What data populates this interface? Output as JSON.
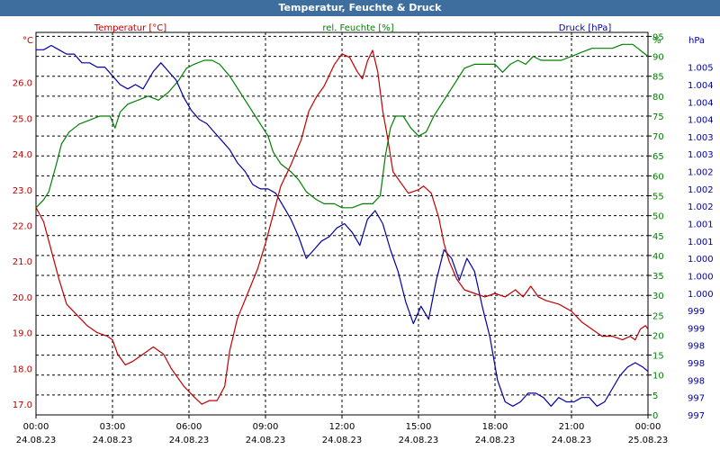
{
  "window": {
    "title": "Temperatur, Feuchte & Druck"
  },
  "colors": {
    "temperature": "#c00000",
    "humidity": "#008000",
    "pressure": "#0000a8",
    "titlebar": "#3d6e9e",
    "grid": "#000000"
  },
  "chart_data": {
    "type": "line",
    "title": "Temperatur, Feuchte & Druck",
    "series_labels": {
      "temperature": "Temperatur [°C]",
      "humidity": "rel. Feuchte [%]",
      "pressure": "Druck [hPa]"
    },
    "axis_units": {
      "left": "°C",
      "right1": "%",
      "right2": "hPa"
    },
    "y_left": {
      "min": 16.7,
      "max": 27.4,
      "ticks": [
        "17.0",
        "18.0",
        "19.0",
        "20.0",
        "21.0",
        "22.0",
        "23.0",
        "24.0",
        "25.0",
        "26.0"
      ]
    },
    "y_right1": {
      "min": 0,
      "max": 96,
      "ticks": [
        "0",
        "5",
        "10",
        "15",
        "20",
        "25",
        "30",
        "35",
        "40",
        "45",
        "50",
        "55",
        "60",
        "65",
        "70",
        "75",
        "80",
        "85",
        "90",
        "95"
      ]
    },
    "y_right2": {
      "min": 996.8,
      "max": 1005.6,
      "ticks": [
        {
          "value": 996.8,
          "label": "997"
        },
        {
          "value": 997.2,
          "label": "997"
        },
        {
          "value": 997.6,
          "label": "998"
        },
        {
          "value": 998.0,
          "label": "998"
        },
        {
          "value": 998.4,
          "label": "998"
        },
        {
          "value": 998.8,
          "label": "999"
        },
        {
          "value": 999.2,
          "label": "999"
        },
        {
          "value": 999.6,
          "label": "1.000"
        },
        {
          "value": 1000.0,
          "label": "1.000"
        },
        {
          "value": 1000.4,
          "label": "1.000"
        },
        {
          "value": 1000.8,
          "label": "1.001"
        },
        {
          "value": 1001.2,
          "label": "1.001"
        },
        {
          "value": 1001.6,
          "label": "1.002"
        },
        {
          "value": 1002.0,
          "label": "1.002"
        },
        {
          "value": 1002.4,
          "label": "1.002"
        },
        {
          "value": 1002.8,
          "label": "1.003"
        },
        {
          "value": 1003.2,
          "label": "1.003"
        },
        {
          "value": 1003.6,
          "label": "1.004"
        },
        {
          "value": 1004.0,
          "label": "1.004"
        },
        {
          "value": 1004.4,
          "label": "1.004"
        },
        {
          "value": 1004.8,
          "label": "1.005"
        }
      ]
    },
    "x_range": [
      0,
      24
    ],
    "x_ticks": [
      {
        "hour": 0,
        "time": "00:00",
        "date": "24.08.23"
      },
      {
        "hour": 3,
        "time": "03:00",
        "date": "24.08.23"
      },
      {
        "hour": 6,
        "time": "06:00",
        "date": "24.08.23"
      },
      {
        "hour": 9,
        "time": "09:00",
        "date": "24.08.23"
      },
      {
        "hour": 12,
        "time": "12:00",
        "date": "24.08.23"
      },
      {
        "hour": 15,
        "time": "15:00",
        "date": "24.08.23"
      },
      {
        "hour": 18,
        "time": "18:00",
        "date": "24.08.23"
      },
      {
        "hour": 21,
        "time": "21:00",
        "date": "24.08.23"
      },
      {
        "hour": 24,
        "time": "00:00",
        "date": "25.08.23"
      }
    ],
    "temperature": [
      [
        0,
        22.5
      ],
      [
        0.3,
        22.1
      ],
      [
        0.6,
        21.3
      ],
      [
        0.9,
        20.5
      ],
      [
        1.2,
        19.8
      ],
      [
        1.6,
        19.5
      ],
      [
        2.0,
        19.2
      ],
      [
        2.4,
        19.0
      ],
      [
        2.8,
        18.9
      ],
      [
        3.0,
        18.8
      ],
      [
        3.2,
        18.4
      ],
      [
        3.5,
        18.1
      ],
      [
        3.8,
        18.2
      ],
      [
        4.2,
        18.4
      ],
      [
        4.6,
        18.6
      ],
      [
        5.0,
        18.4
      ],
      [
        5.3,
        18.0
      ],
      [
        5.8,
        17.5
      ],
      [
        6.2,
        17.2
      ],
      [
        6.5,
        17.0
      ],
      [
        6.8,
        17.1
      ],
      [
        7.1,
        17.1
      ],
      [
        7.4,
        17.5
      ],
      [
        7.6,
        18.5
      ],
      [
        7.9,
        19.4
      ],
      [
        8.3,
        20.1
      ],
      [
        8.7,
        20.8
      ],
      [
        9.0,
        21.5
      ],
      [
        9.3,
        22.3
      ],
      [
        9.6,
        23.1
      ],
      [
        10.0,
        23.7
      ],
      [
        10.4,
        24.4
      ],
      [
        10.7,
        25.2
      ],
      [
        11.0,
        25.6
      ],
      [
        11.3,
        25.9
      ],
      [
        11.7,
        26.5
      ],
      [
        12.0,
        26.8
      ],
      [
        12.3,
        26.7
      ],
      [
        12.6,
        26.3
      ],
      [
        12.8,
        26.1
      ],
      [
        13.0,
        26.6
      ],
      [
        13.2,
        26.9
      ],
      [
        13.4,
        26.3
      ],
      [
        13.6,
        25.2
      ],
      [
        13.8,
        24.4
      ],
      [
        14.0,
        23.5
      ],
      [
        14.3,
        23.2
      ],
      [
        14.6,
        22.9
      ],
      [
        15.0,
        23.0
      ],
      [
        15.2,
        23.1
      ],
      [
        15.5,
        22.9
      ],
      [
        15.8,
        22.2
      ],
      [
        16.0,
        21.5
      ],
      [
        16.2,
        21.0
      ],
      [
        16.5,
        20.5
      ],
      [
        16.8,
        20.2
      ],
      [
        17.2,
        20.1
      ],
      [
        17.6,
        20.0
      ],
      [
        18.0,
        20.1
      ],
      [
        18.4,
        20.0
      ],
      [
        18.8,
        20.2
      ],
      [
        19.1,
        20.0
      ],
      [
        19.4,
        20.3
      ],
      [
        19.7,
        20.0
      ],
      [
        20.0,
        19.9
      ],
      [
        20.5,
        19.8
      ],
      [
        21.0,
        19.6
      ],
      [
        21.4,
        19.3
      ],
      [
        21.8,
        19.1
      ],
      [
        22.2,
        18.9
      ],
      [
        22.6,
        18.9
      ],
      [
        23.0,
        18.8
      ],
      [
        23.3,
        18.9
      ],
      [
        23.5,
        18.8
      ],
      [
        23.7,
        19.1
      ],
      [
        23.9,
        19.2
      ],
      [
        24.0,
        19.1
      ]
    ],
    "humidity": [
      [
        0,
        52
      ],
      [
        0.3,
        54
      ],
      [
        0.5,
        56
      ],
      [
        0.8,
        63
      ],
      [
        1.0,
        68
      ],
      [
        1.3,
        71
      ],
      [
        1.7,
        73
      ],
      [
        2.1,
        74
      ],
      [
        2.5,
        75
      ],
      [
        2.9,
        75
      ],
      [
        3.1,
        72
      ],
      [
        3.3,
        76
      ],
      [
        3.6,
        78
      ],
      [
        4.0,
        79
      ],
      [
        4.4,
        80
      ],
      [
        4.8,
        79
      ],
      [
        5.2,
        81
      ],
      [
        5.6,
        84
      ],
      [
        5.9,
        87
      ],
      [
        6.2,
        88
      ],
      [
        6.6,
        89
      ],
      [
        6.9,
        89
      ],
      [
        7.2,
        88
      ],
      [
        7.6,
        85
      ],
      [
        8.0,
        81
      ],
      [
        8.4,
        77
      ],
      [
        8.8,
        73
      ],
      [
        9.1,
        70
      ],
      [
        9.3,
        66
      ],
      [
        9.6,
        63
      ],
      [
        10.0,
        61
      ],
      [
        10.3,
        59
      ],
      [
        10.6,
        56
      ],
      [
        11.0,
        54
      ],
      [
        11.3,
        53
      ],
      [
        11.7,
        53
      ],
      [
        12.0,
        52
      ],
      [
        12.4,
        52
      ],
      [
        12.8,
        53
      ],
      [
        13.2,
        53
      ],
      [
        13.5,
        55
      ],
      [
        13.7,
        65
      ],
      [
        13.9,
        72
      ],
      [
        14.1,
        75
      ],
      [
        14.4,
        75
      ],
      [
        14.7,
        72
      ],
      [
        15.0,
        70
      ],
      [
        15.3,
        71
      ],
      [
        15.6,
        75
      ],
      [
        16.0,
        79
      ],
      [
        16.4,
        83
      ],
      [
        16.8,
        87
      ],
      [
        17.2,
        88
      ],
      [
        17.6,
        88
      ],
      [
        18.0,
        88
      ],
      [
        18.3,
        86
      ],
      [
        18.6,
        88
      ],
      [
        18.9,
        89
      ],
      [
        19.2,
        88
      ],
      [
        19.5,
        90
      ],
      [
        19.8,
        89
      ],
      [
        20.2,
        89
      ],
      [
        20.6,
        89
      ],
      [
        21.0,
        90
      ],
      [
        21.4,
        91
      ],
      [
        21.8,
        92
      ],
      [
        22.2,
        92
      ],
      [
        22.6,
        92
      ],
      [
        23.0,
        93
      ],
      [
        23.4,
        93
      ],
      [
        23.6,
        92
      ],
      [
        23.8,
        91
      ],
      [
        24.0,
        90
      ]
    ],
    "pressure": [
      [
        0,
        1005.2
      ],
      [
        0.3,
        1005.2
      ],
      [
        0.6,
        1005.3
      ],
      [
        0.9,
        1005.2
      ],
      [
        1.2,
        1005.1
      ],
      [
        1.5,
        1005.1
      ],
      [
        1.8,
        1004.9
      ],
      [
        2.1,
        1004.9
      ],
      [
        2.4,
        1004.8
      ],
      [
        2.7,
        1004.8
      ],
      [
        3.0,
        1004.6
      ],
      [
        3.3,
        1004.4
      ],
      [
        3.6,
        1004.3
      ],
      [
        3.9,
        1004.4
      ],
      [
        4.2,
        1004.3
      ],
      [
        4.6,
        1004.7
      ],
      [
        4.9,
        1004.9
      ],
      [
        5.2,
        1004.7
      ],
      [
        5.5,
        1004.5
      ],
      [
        5.8,
        1004.1
      ],
      [
        6.1,
        1003.8
      ],
      [
        6.4,
        1003.6
      ],
      [
        6.7,
        1003.5
      ],
      [
        7.0,
        1003.3
      ],
      [
        7.3,
        1003.1
      ],
      [
        7.6,
        1002.9
      ],
      [
        7.9,
        1002.6
      ],
      [
        8.2,
        1002.4
      ],
      [
        8.5,
        1002.1
      ],
      [
        8.8,
        1002.0
      ],
      [
        9.1,
        1002.0
      ],
      [
        9.4,
        1001.9
      ],
      [
        9.7,
        1001.6
      ],
      [
        10.0,
        1001.3
      ],
      [
        10.3,
        1000.9
      ],
      [
        10.6,
        1000.4
      ],
      [
        10.9,
        1000.6
      ],
      [
        11.2,
        1000.8
      ],
      [
        11.5,
        1000.9
      ],
      [
        11.8,
        1001.1
      ],
      [
        12.1,
        1001.2
      ],
      [
        12.4,
        1001.0
      ],
      [
        12.7,
        1000.7
      ],
      [
        13.0,
        1001.3
      ],
      [
        13.3,
        1001.5
      ],
      [
        13.6,
        1001.2
      ],
      [
        13.9,
        1000.6
      ],
      [
        14.2,
        1000.1
      ],
      [
        14.5,
        999.4
      ],
      [
        14.8,
        998.9
      ],
      [
        15.1,
        999.3
      ],
      [
        15.4,
        999.0
      ],
      [
        15.7,
        999.9
      ],
      [
        16.0,
        1000.6
      ],
      [
        16.3,
        1000.4
      ],
      [
        16.6,
        999.9
      ],
      [
        16.9,
        1000.4
      ],
      [
        17.2,
        1000.1
      ],
      [
        17.5,
        999.3
      ],
      [
        17.8,
        998.6
      ],
      [
        18.1,
        997.6
      ],
      [
        18.4,
        997.1
      ],
      [
        18.7,
        997.0
      ],
      [
        19.0,
        997.1
      ],
      [
        19.3,
        997.3
      ],
      [
        19.6,
        997.3
      ],
      [
        19.9,
        997.2
      ],
      [
        20.2,
        997.0
      ],
      [
        20.5,
        997.2
      ],
      [
        20.8,
        997.1
      ],
      [
        21.1,
        997.1
      ],
      [
        21.4,
        997.2
      ],
      [
        21.7,
        997.2
      ],
      [
        22.0,
        997.0
      ],
      [
        22.3,
        997.1
      ],
      [
        22.6,
        997.4
      ],
      [
        22.9,
        997.7
      ],
      [
        23.2,
        997.9
      ],
      [
        23.5,
        998.0
      ],
      [
        23.8,
        997.9
      ],
      [
        24.0,
        997.8
      ]
    ]
  }
}
